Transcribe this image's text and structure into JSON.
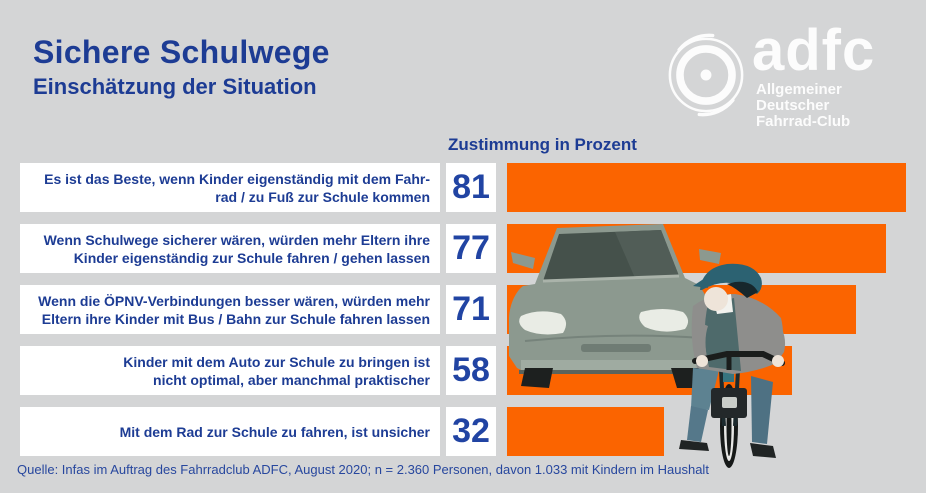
{
  "header": {
    "title": "Sichere Schulwege",
    "subtitle": "Einschätzung der Situation"
  },
  "logo": {
    "brand": "adfc",
    "subtitle_line1": "Allgemeiner Deutscher",
    "subtitle_line2": "Fahrrad-Club",
    "icon": "bicycle-wheel-icon"
  },
  "chart_data": {
    "type": "bar",
    "orientation": "horizontal",
    "title": "Zustimmung in Prozent",
    "categories": [
      "Es ist das Beste, wenn Kinder eigenständig mit dem Fahrrad / zu Fuß zur Schule kommen",
      "Wenn Schulwege sicherer wären, würden mehr Eltern ihre Kinder eigenständig zur Schule fahren / gehen lassen",
      "Wenn die ÖPNV-Verbindungen besser wären, würden mehr Eltern ihre Kinder mit Bus / Bahn zur Schule fahren lassen",
      "Kinder mit dem Auto zur Schule zu bringen ist nicht optimal, aber manchmal praktischer",
      "Mit dem Rad zur Schule zu fahren, ist unsicher"
    ],
    "label_lines": [
      [
        "Es ist das Beste, wenn Kinder eigenständig mit dem Fahr-",
        "rad / zu Fuß zur Schule kommen"
      ],
      [
        "Wenn Schulwege sicherer wären, würden mehr Eltern ihre",
        "Kinder eigenständig zur Schule fahren / gehen lassen"
      ],
      [
        "Wenn die ÖPNV-Verbindungen besser wären, würden mehr",
        "Eltern ihre Kinder mit Bus / Bahn zur Schule fahren lassen"
      ],
      [
        "Kinder mit dem Auto zur Schule zu bringen ist",
        "nicht optimal, aber manchmal praktischer"
      ],
      [
        "Mit dem Rad zur Schule zu fahren, ist unsicher"
      ]
    ],
    "values": [
      81,
      77,
      71,
      58,
      32
    ],
    "xlim": [
      0,
      100
    ],
    "grid": false,
    "legend": false,
    "bar_color": "#fb6400",
    "value_color": "#2144a3"
  },
  "illustration": {
    "description": "car and child cyclist collage"
  },
  "footer": {
    "source": "Quelle: Infas im Auftrag des Fahrradclub ADFC, August 2020; n = 2.360 Personen, davon 1.033 mit Kindern im Haushalt"
  },
  "colors": {
    "background": "#d4d5d6",
    "accent_orange": "#fb6400",
    "text_blue": "#1d3c94",
    "logo_white": "#fcfcfc"
  }
}
